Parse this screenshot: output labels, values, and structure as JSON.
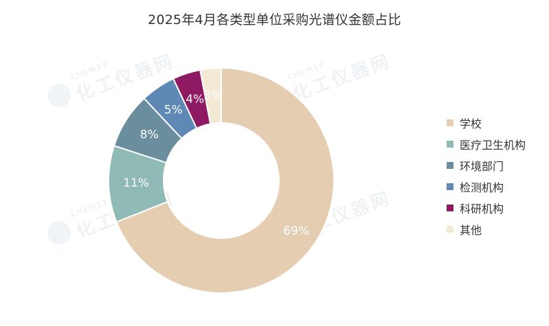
{
  "watermark": {
    "en": "CHEM17",
    "cn": "化工仪器网"
  },
  "chart_data": {
    "type": "pie",
    "subtype": "donut",
    "title": "2025年4月各类型单位采购光谱仪金额占比",
    "legend_position": "right",
    "slices": [
      {
        "label": "学校",
        "value": 69,
        "display": "69%",
        "color": "#e4cdb0"
      },
      {
        "label": "医疗卫生机构",
        "value": 11,
        "display": "11%",
        "color": "#8fbab6"
      },
      {
        "label": "环境部门",
        "value": 8,
        "display": "8%",
        "color": "#6a8e9e"
      },
      {
        "label": "检测机构",
        "value": 5,
        "display": "5%",
        "color": "#5e88b5"
      },
      {
        "label": "科研机构",
        "value": 4,
        "display": "4%",
        "color": "#8e1a63"
      },
      {
        "label": "其他",
        "value": 3,
        "display": "3%",
        "color": "#f4e9d5"
      }
    ]
  }
}
